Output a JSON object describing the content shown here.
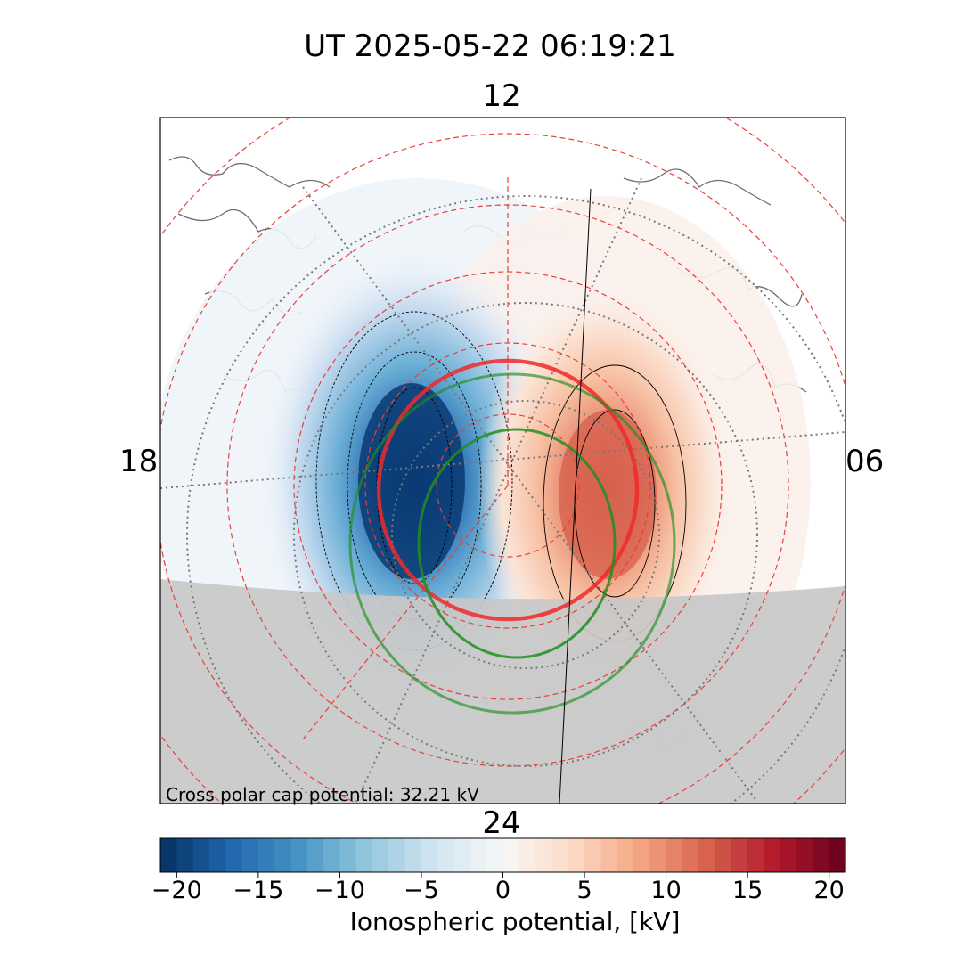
{
  "title": "UT 2025-05-22 06:19:21",
  "mlt_labels": {
    "top": "12",
    "bottom": "24",
    "left": "18",
    "right": "06"
  },
  "annotation": "Cross polar cap potential: 32.21 kV",
  "chart_data": {
    "type": "heatmap",
    "title": "UT 2025-05-22 06:19:21",
    "projection": "north polar, magnetic local time (12 at top, 24 at bottom)",
    "colormap": "RdBu_r",
    "colorbar": {
      "label": "Ionospheric potential, [kV]",
      "range": [
        -21,
        21
      ],
      "ticks": [
        -20,
        -15,
        -10,
        -5,
        0,
        5,
        10,
        15,
        20
      ],
      "tick_labels": [
        "−20",
        "−15",
        "−10",
        "−5",
        "0",
        "5",
        "10",
        "15",
        "20"
      ],
      "levels": 42
    },
    "cross_polar_cap_potential_kV": 32.21,
    "potential_minimum_kV": -16.1,
    "potential_maximum_kV": 16.1,
    "minimum_sector": "dusk (18 MLT)",
    "maximum_sector": "dawn (06 MLT)",
    "overlays": [
      "coastlines",
      "magnetic latitude/MLT grid (red dashed)",
      "geographic grid (grey dotted)",
      "auroral oval boundaries (red, green)",
      "night-side shading (grey)",
      "potential contours (black)"
    ],
    "colors": {
      "negative": "#053061",
      "positive": "#67001f",
      "night_shade": "#c8c8c8",
      "grid": "#e8403a",
      "oval_inner": "#ee2a2a",
      "oval_outer": "#2a9d2a"
    }
  }
}
